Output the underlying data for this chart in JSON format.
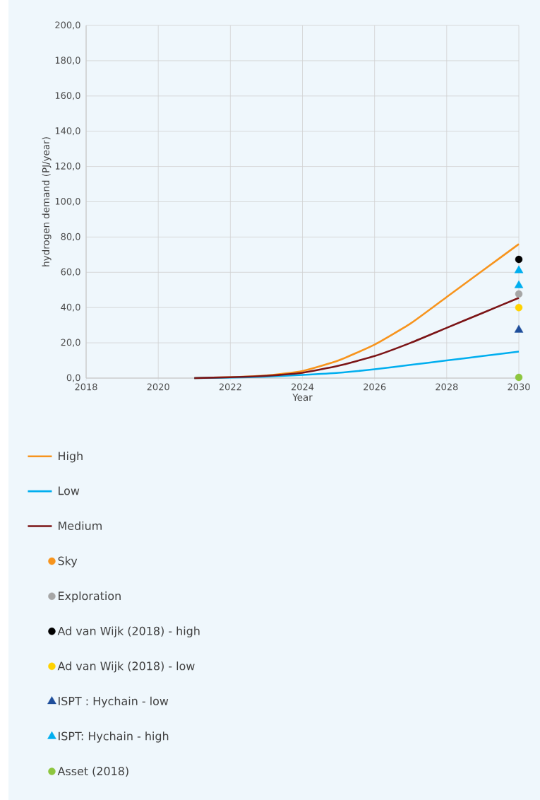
{
  "chart_data": {
    "type": "line",
    "xlabel": "Year",
    "ylabel": "hydrogen demand (PJ/year)",
    "xlim": [
      2018,
      2030
    ],
    "xticks": [
      2018,
      2020,
      2022,
      2024,
      2026,
      2028,
      2030
    ],
    "ylim": [
      0,
      200
    ],
    "yticks": [
      {
        "value": 0,
        "label": "0,0"
      },
      {
        "value": 20,
        "label": "20,0"
      },
      {
        "value": 40,
        "label": "40,0"
      },
      {
        "value": 60,
        "label": "60,0"
      },
      {
        "value": 80,
        "label": "80,0"
      },
      {
        "value": 100,
        "label": "100,0"
      },
      {
        "value": 120,
        "label": "120,0"
      },
      {
        "value": 140,
        "label": "140,0"
      },
      {
        "value": 160,
        "label": "160,0"
      },
      {
        "value": 180,
        "label": "180,0"
      },
      {
        "value": 200,
        "label": "200,0"
      }
    ],
    "grid": true,
    "legend": "bottom",
    "marker": "none",
    "x": [
      2021,
      2022,
      2023,
      2024,
      2025,
      2026,
      2027,
      2028,
      2029,
      2030
    ],
    "series": [
      {
        "name": "High",
        "color": "#f7941d",
        "values": [
          0,
          0.5,
          1.5,
          4,
          10,
          19,
          31,
          46,
          61,
          76
        ]
      },
      {
        "name": "Low",
        "color": "#00aeef",
        "values": [
          0,
          0.3,
          0.8,
          1.8,
          3,
          5,
          7.5,
          10,
          12.5,
          15
        ]
      },
      {
        "name": "Medium",
        "color": "#7b1416",
        "values": [
          0,
          0.5,
          1.3,
          3,
          7,
          12.5,
          20,
          28.5,
          37,
          45.5
        ]
      },
      {
        "name": "Sky",
        "type": "scatter",
        "marker": "circle",
        "color": "#f7941d",
        "values": [
          null,
          null,
          null,
          null,
          null,
          null,
          null,
          null,
          null,
          null
        ]
      },
      {
        "name": "Exploration",
        "type": "scatter",
        "marker": "circle",
        "color": "#a6a6a6",
        "values": [
          null,
          null,
          null,
          null,
          null,
          null,
          null,
          null,
          null,
          47.7
        ]
      },
      {
        "name": "Ad van Wijk (2018) - high",
        "type": "scatter",
        "marker": "circle",
        "color": "#000000",
        "values": [
          null,
          null,
          null,
          null,
          null,
          null,
          null,
          null,
          null,
          67.3
        ]
      },
      {
        "name": "Ad van Wijk (2018) - low",
        "type": "scatter",
        "marker": "circle",
        "color": "#ffd200",
        "values": [
          null,
          null,
          null,
          null,
          null,
          null,
          null,
          null,
          null,
          40
        ]
      },
      {
        "name": "ISPT : Hychain - low",
        "type": "scatter",
        "marker": "triangle",
        "color": "#1f4e9b",
        "values": [
          null,
          null,
          null,
          null,
          null,
          null,
          null,
          null,
          null,
          27.3
        ]
      },
      {
        "name": "ISPT: Hychain - high",
        "type": "scatter",
        "marker": "triangle",
        "color": "#00aeef",
        "x": [
          2030,
          2030
        ],
        "values": [
          61,
          52.5
        ]
      },
      {
        "name": "Asset (2018)",
        "type": "scatter",
        "marker": "circle",
        "color": "#8dc63f",
        "values": [
          null,
          null,
          null,
          null,
          null,
          null,
          null,
          null,
          null,
          0.4
        ]
      }
    ]
  }
}
